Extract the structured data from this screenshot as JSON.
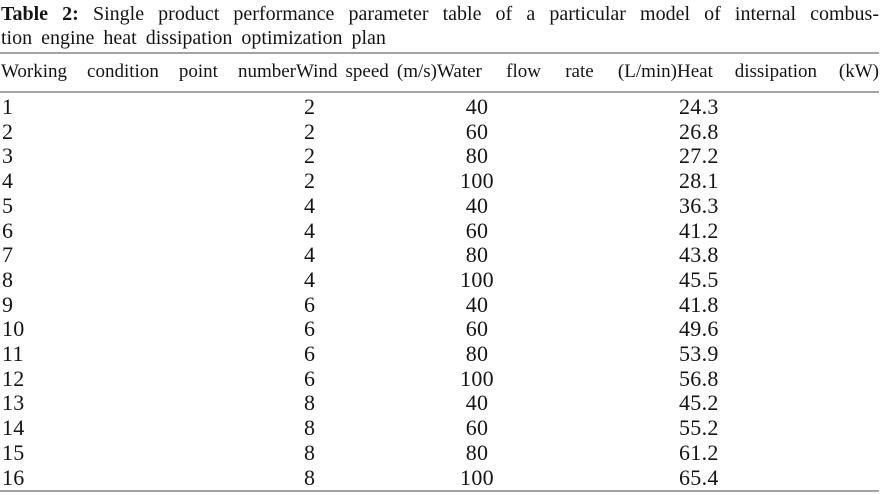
{
  "caption": {
    "label": "Table 2:",
    "title_line1": "Single product performance parameter table of a particular model of internal combus-",
    "title_line2": "tion engine heat dissipation optimization plan"
  },
  "table": {
    "columns": [
      "Working condition point number",
      "Wind speed (m/s)",
      "Water flow rate (L/min)",
      "Heat dissipation (kW)"
    ],
    "rows": [
      [
        "1",
        "2",
        "40",
        "24.3"
      ],
      [
        "2",
        "2",
        "60",
        "26.8"
      ],
      [
        "3",
        "2",
        "80",
        "27.2"
      ],
      [
        "4",
        "2",
        "100",
        "28.1"
      ],
      [
        "5",
        "4",
        "40",
        "36.3"
      ],
      [
        "6",
        "4",
        "60",
        "41.2"
      ],
      [
        "7",
        "4",
        "80",
        "43.8"
      ],
      [
        "8",
        "4",
        "100",
        "45.5"
      ],
      [
        "9",
        "6",
        "40",
        "41.8"
      ],
      [
        "10",
        "6",
        "60",
        "49.6"
      ],
      [
        "11",
        "6",
        "80",
        "53.9"
      ],
      [
        "12",
        "6",
        "100",
        "56.8"
      ],
      [
        "13",
        "8",
        "40",
        "45.2"
      ],
      [
        "14",
        "8",
        "60",
        "55.2"
      ],
      [
        "15",
        "8",
        "80",
        "61.2"
      ],
      [
        "16",
        "8",
        "100",
        "65.4"
      ]
    ]
  }
}
